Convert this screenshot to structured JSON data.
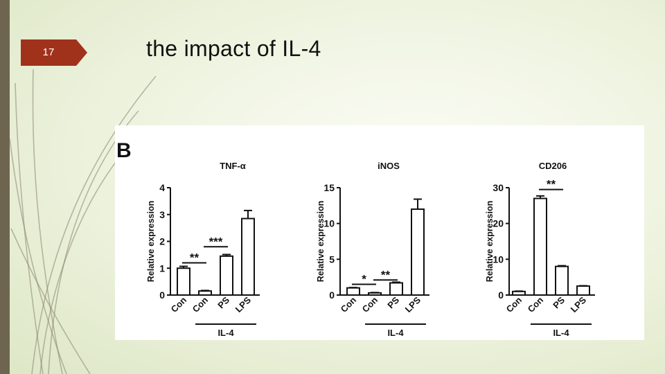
{
  "slide": {
    "number": "17",
    "title": "the impact of IL-4",
    "colors": {
      "accent": "#a0321c",
      "left_bar": "#6d6550",
      "decor_lines": "#8a8470"
    }
  },
  "figure": {
    "panel_letter": "B"
  },
  "chart_data": [
    {
      "type": "bar",
      "title": "TNF-α",
      "ylabel": "Relative expression",
      "ylim": [
        0,
        4
      ],
      "yticks": [
        0,
        1,
        2,
        3,
        4
      ],
      "categories": [
        "Con",
        "Con",
        "PS",
        "LPS"
      ],
      "values": [
        1.0,
        0.15,
        1.45,
        2.85
      ],
      "errors": [
        0.07,
        0.02,
        0.06,
        0.3
      ],
      "group_label": "IL-4",
      "group_span": [
        1,
        3
      ],
      "significance": [
        {
          "label": "**",
          "from": 0,
          "to": 1,
          "y": 1.2
        },
        {
          "label": "***",
          "from": 1,
          "to": 2,
          "y": 1.8
        }
      ]
    },
    {
      "type": "bar",
      "title": "iNOS",
      "ylabel": "Relative expression",
      "ylim": [
        0,
        15
      ],
      "yticks": [
        0,
        5,
        10,
        15
      ],
      "categories": [
        "Con",
        "Con",
        "PS",
        "LPS"
      ],
      "values": [
        1.0,
        0.3,
        1.7,
        12.0
      ],
      "errors": [
        0.05,
        0.05,
        0.1,
        1.4
      ],
      "group_label": "IL-4",
      "group_span": [
        1,
        3
      ],
      "significance": [
        {
          "label": "*",
          "from": 0,
          "to": 1,
          "y": 1.5
        },
        {
          "label": "**",
          "from": 1,
          "to": 2,
          "y": 2.1
        }
      ]
    },
    {
      "type": "bar",
      "title": "CD206",
      "ylabel": "Relative expression",
      "ylim": [
        0,
        30
      ],
      "yticks": [
        0,
        10,
        20,
        30
      ],
      "categories": [
        "Con",
        "Con",
        "PS",
        "LPS"
      ],
      "values": [
        1.0,
        27.0,
        8.0,
        2.5
      ],
      "errors": [
        0.1,
        0.7,
        0.2,
        0.1
      ],
      "group_label": "IL-4",
      "group_span": [
        1,
        3
      ],
      "significance": [
        {
          "label": "**",
          "from": 1,
          "to": 2,
          "y": 29.5
        }
      ]
    }
  ]
}
